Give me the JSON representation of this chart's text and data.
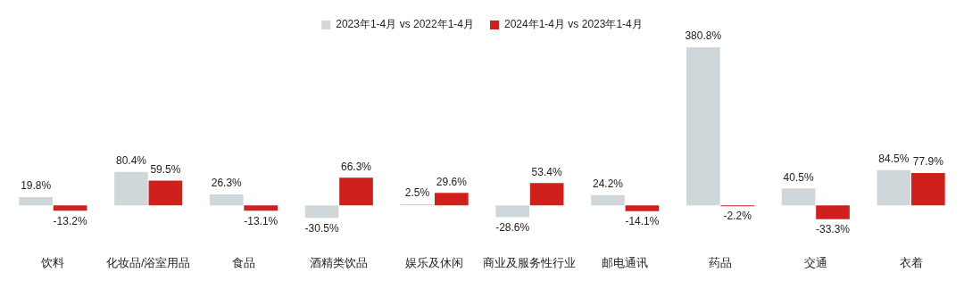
{
  "chart_data": {
    "type": "bar",
    "legend": "top",
    "categories": [
      "饮料",
      "化妆品/浴室用品",
      "食品",
      "酒精类饮品",
      "娱乐及休闲",
      "商业及服务性行业",
      "邮电通讯",
      "药品",
      "交通",
      "衣着"
    ],
    "series": [
      {
        "name": "2023年1-4月 vs 2022年1-4月",
        "color": "#d0d7da",
        "values": [
          19.8,
          80.4,
          26.3,
          -30.5,
          2.5,
          -28.6,
          24.2,
          380.8,
          40.5,
          84.5
        ],
        "value_labels": [
          "19.8%",
          "80.4%",
          "26.3%",
          "-30.5%",
          "2.5%",
          "-28.6%",
          "24.2%",
          "380.8%",
          "40.5%",
          "84.5%"
        ]
      },
      {
        "name": "2024年1-4月 vs 2023年1-4月",
        "color": "#d0201e",
        "values": [
          -13.2,
          59.5,
          -13.1,
          66.3,
          29.6,
          53.4,
          -14.1,
          -2.2,
          -33.3,
          77.9
        ],
        "value_labels": [
          "-13.2%",
          "59.5%",
          "-13.1%",
          "66.3%",
          "29.6%",
          "53.4%",
          "-14.1%",
          "-2.2%",
          "-33.3%",
          "77.9%"
        ]
      }
    ]
  }
}
